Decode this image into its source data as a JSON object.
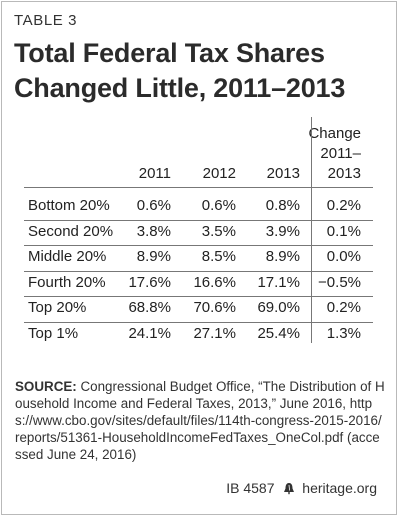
{
  "table_label": "TABLE 3",
  "title_line1": "Total Federal Tax Shares",
  "title_line2": "Changed Little, 2011–2013",
  "chart_data": {
    "type": "table",
    "columns": [
      "2011",
      "2012",
      "2013"
    ],
    "change_header": [
      "Change",
      "2011–",
      "2013"
    ],
    "rows": [
      {
        "label": "Bottom 20%",
        "values": [
          "0.6%",
          "0.6%",
          "0.8%"
        ],
        "change": "0.2%"
      },
      {
        "label": "Second 20%",
        "values": [
          "3.8%",
          "3.5%",
          "3.9%"
        ],
        "change": "0.1%"
      },
      {
        "label": "Middle 20%",
        "values": [
          "8.9%",
          "8.5%",
          "8.9%"
        ],
        "change": "0.0%"
      },
      {
        "label": "Fourth 20%",
        "values": [
          "17.6%",
          "16.6%",
          "17.1%"
        ],
        "change": "−0.5%"
      },
      {
        "label": "Top 20%",
        "values": [
          "68.8%",
          "70.6%",
          "69.0%"
        ],
        "change": "0.2%"
      },
      {
        "label": "Top 1%",
        "values": [
          "24.1%",
          "27.1%",
          "25.4%"
        ],
        "change": "1.3%"
      }
    ]
  },
  "source_label": "SOURCE:",
  "source_text": "Congressional Budget Office, “The Distribution of Household Income and Federal Taxes, 2013,” June 2016, https://www.cbo.gov/sites/default/files/114th-congress-2015-2016/reports/51361-HouseholdIncomeFedTaxes_OneCol.pdf (accessed June 24, 2016)",
  "credit_id": "IB 4587",
  "credit_site": "heritage.org",
  "colors": {
    "rule": "#777777",
    "frame": "#b9b9b9",
    "text": "#222222"
  }
}
